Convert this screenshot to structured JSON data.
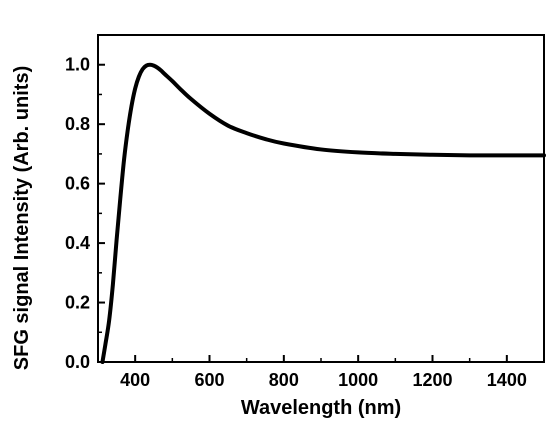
{
  "chart_data": {
    "type": "line",
    "title": "",
    "xlabel": "Wavelength (nm)",
    "ylabel": "SFG signal Intensity (Arb. units)",
    "xlim": [
      300,
      1500
    ],
    "ylim": [
      0.0,
      1.1
    ],
    "grid": false,
    "legend": "none",
    "x_ticks": [
      400,
      600,
      800,
      1000,
      1200,
      1400
    ],
    "x_tick_labels": [
      "400",
      "600",
      "800",
      "1000",
      "1200",
      "1400"
    ],
    "y_ticks": [
      0.0,
      0.2,
      0.4,
      0.6,
      0.8,
      1.0
    ],
    "y_tick_labels": [
      "0.0",
      "0.2",
      "0.4",
      "0.6",
      "0.8",
      "1.0"
    ],
    "series": [
      {
        "color": "#000000",
        "x": [
          312,
          320,
          330,
          340,
          350,
          360,
          370,
          380,
          390,
          400,
          410,
          420,
          430,
          440,
          450,
          460,
          470,
          480,
          500,
          520,
          550,
          600,
          650,
          700,
          750,
          800,
          900,
          1000,
          1100,
          1200,
          1300,
          1400,
          1500
        ],
        "y": [
          0.0,
          0.06,
          0.14,
          0.26,
          0.41,
          0.55,
          0.68,
          0.78,
          0.86,
          0.92,
          0.96,
          0.985,
          0.997,
          1.0,
          0.997,
          0.99,
          0.98,
          0.968,
          0.945,
          0.92,
          0.885,
          0.835,
          0.795,
          0.77,
          0.75,
          0.735,
          0.715,
          0.705,
          0.7,
          0.697,
          0.695,
          0.695,
          0.695
        ]
      }
    ]
  }
}
